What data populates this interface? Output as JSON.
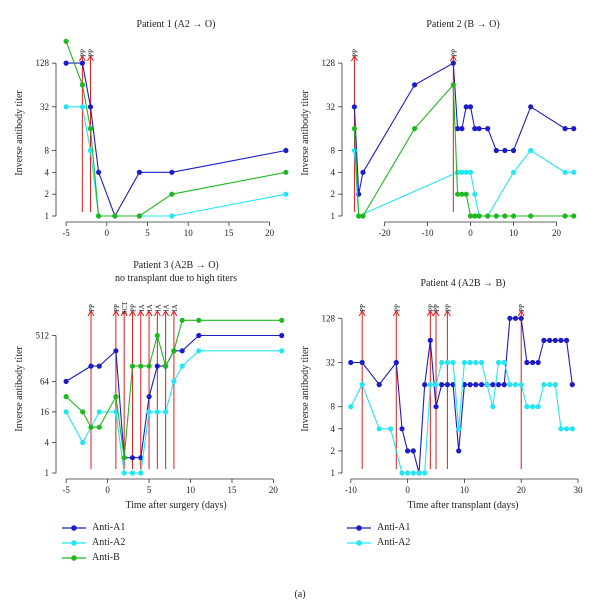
{
  "colors": {
    "Anti-A1": "#1c1cc8",
    "Anti-A2": "#22e6f2",
    "Anti-B": "#1fb81f",
    "annotation": "#e21b1b"
  },
  "caption": "(a)",
  "legends": [
    {
      "items": [
        {
          "name": "Anti-A1",
          "color": "#1c1cc8"
        },
        {
          "name": "Anti-A2",
          "color": "#22e6f2"
        },
        {
          "name": "Anti-B",
          "color": "#1fb81f"
        }
      ]
    },
    {
      "items": [
        {
          "name": "Anti-A1",
          "color": "#1c1cc8"
        },
        {
          "name": "Anti-A2",
          "color": "#22e6f2"
        }
      ]
    }
  ],
  "chart_data": [
    {
      "type": "line",
      "title": "Patient 1 (A2 → O)",
      "subtitle": "",
      "xlabel": "",
      "ylabel": "Inverse antibody titer",
      "xlim": [
        -5.5,
        22.5
      ],
      "ylim_log2": [
        0,
        7.6
      ],
      "log_scale_y": true,
      "xticks": [
        -5,
        0,
        5,
        10,
        15,
        20
      ],
      "yticks": [
        1,
        2,
        4,
        8,
        32,
        128
      ],
      "annotations": [
        {
          "x": -3,
          "label": "PP"
        },
        {
          "x": -2,
          "label": "PP"
        }
      ],
      "series": [
        {
          "name": "Anti-A1",
          "x": [
            -5,
            -3,
            -2,
            -1,
            1,
            4,
            8,
            22
          ],
          "y": [
            128,
            128,
            32,
            4,
            1,
            4,
            4,
            8
          ]
        },
        {
          "name": "Anti-A2",
          "x": [
            -5,
            -3,
            -2,
            -1,
            1,
            4,
            8,
            22
          ],
          "y": [
            32,
            32,
            8,
            1,
            1,
            1,
            1,
            2
          ]
        },
        {
          "name": "Anti-B",
          "x": [
            -5,
            -3,
            -2,
            -1,
            1,
            4,
            8,
            22
          ],
          "y": [
            256,
            64,
            16,
            1,
            1,
            1,
            2,
            4
          ]
        }
      ]
    },
    {
      "type": "line",
      "title": "Patient 2 (B → O)",
      "subtitle": "",
      "xlabel": "",
      "ylabel": "Inverse antibody titer",
      "xlim": [
        -28.5,
        25
      ],
      "ylim_log2": [
        0,
        7.6
      ],
      "log_scale_y": true,
      "xticks": [
        -20,
        -10,
        0,
        10,
        20
      ],
      "yticks": [
        1,
        2,
        4,
        8,
        32,
        128
      ],
      "annotations": [
        {
          "x": -27,
          "label": "PP"
        },
        {
          "x": -4,
          "label": "PP"
        }
      ],
      "series": [
        {
          "name": "Anti-A1",
          "x": [
            -27,
            -26,
            -25,
            -13,
            -4,
            -3,
            -2,
            -1,
            0,
            1,
            2,
            4,
            6,
            8,
            10,
            14,
            22,
            24
          ],
          "y": [
            32,
            2,
            4,
            64,
            128,
            16,
            16,
            32,
            32,
            16,
            16,
            16,
            8,
            8,
            8,
            32,
            16,
            16
          ]
        },
        {
          "name": "Anti-A2",
          "x": [
            -27,
            -26,
            -3,
            -2,
            -1,
            0,
            1,
            2,
            4,
            10,
            14,
            22,
            24
          ],
          "y": [
            8,
            1,
            4,
            4,
            4,
            4,
            2,
            1,
            1,
            4,
            8,
            4,
            4
          ]
        },
        {
          "name": "Anti-B",
          "x": [
            -27,
            -26,
            -25,
            -13,
            -4,
            -3,
            -2,
            -1,
            0,
            1,
            2,
            4,
            6,
            8,
            10,
            14,
            22,
            24
          ],
          "y": [
            16,
            1,
            1,
            16,
            64,
            2,
            2,
            2,
            1,
            1,
            1,
            1,
            1,
            1,
            1,
            1,
            1,
            1
          ]
        }
      ]
    },
    {
      "type": "line",
      "title": "Patient 3 (A2B → O)",
      "subtitle": "no transplant due to high titers",
      "xlabel": "Time after surgery (days)",
      "ylabel": "Inverse antibody titer",
      "xlim": [
        -5.5,
        22
      ],
      "ylim_log2": [
        0,
        11
      ],
      "log_scale_y": true,
      "xticks": [
        -5,
        0,
        5,
        10,
        15,
        20
      ],
      "yticks": [
        1,
        4,
        16,
        64,
        512
      ],
      "annotations": [
        {
          "x": -2,
          "label": "PP"
        },
        {
          "x": 1,
          "label": "PP"
        },
        {
          "x": 2,
          "label": "SCT"
        },
        {
          "x": 3,
          "label": "PP"
        },
        {
          "x": 4,
          "label": "IA"
        },
        {
          "x": 5,
          "label": "IA"
        },
        {
          "x": 6,
          "label": "IA"
        },
        {
          "x": 7,
          "label": "IA"
        },
        {
          "x": 8,
          "label": "IA"
        }
      ],
      "series": [
        {
          "name": "Anti-A1",
          "x": [
            -5,
            -2,
            -1,
            1,
            2,
            3,
            4,
            5,
            6,
            7,
            8,
            9,
            11,
            21
          ],
          "y": [
            64,
            128,
            128,
            256,
            2,
            2,
            2,
            32,
            128,
            128,
            256,
            256,
            512,
            512
          ]
        },
        {
          "name": "Anti-A2",
          "x": [
            -5,
            -3,
            -1,
            1,
            2,
            3,
            4,
            5,
            6,
            7,
            8,
            9,
            11,
            21
          ],
          "y": [
            16,
            4,
            16,
            16,
            1,
            1,
            1,
            16,
            16,
            16,
            64,
            128,
            256,
            256
          ]
        },
        {
          "name": "Anti-B",
          "x": [
            -5,
            -3,
            -2,
            -1,
            1,
            2,
            3,
            4,
            5,
            6,
            7,
            8,
            9,
            11,
            21
          ],
          "y": [
            32,
            16,
            8,
            8,
            32,
            2,
            128,
            128,
            128,
            512,
            128,
            256,
            1024,
            1024,
            1024
          ]
        }
      ]
    },
    {
      "type": "line",
      "title": "Patient 4 (A2B → B)",
      "subtitle": "",
      "xlabel": "Time after transplant (days)",
      "ylabel": "Inverse antibody titer",
      "xlim": [
        -10.5,
        30
      ],
      "ylim_log2": [
        0,
        7.6
      ],
      "log_scale_y": true,
      "xticks": [
        -10,
        0,
        10,
        20,
        30
      ],
      "yticks": [
        1,
        2,
        4,
        8,
        32,
        128
      ],
      "annotations": [
        {
          "x": -8,
          "label": "PP"
        },
        {
          "x": -2,
          "label": "PP"
        },
        {
          "x": 4,
          "label": "PP"
        },
        {
          "x": 5,
          "label": "PP"
        },
        {
          "x": 7,
          "label": "PP"
        },
        {
          "x": 20,
          "label": "PP"
        }
      ],
      "series": [
        {
          "name": "Anti-A1",
          "x": [
            -10,
            -8,
            -5,
            -2,
            -1,
            0,
            1,
            2,
            3,
            4,
            5,
            6,
            7,
            8,
            9,
            10,
            11,
            12,
            13,
            14,
            15,
            16,
            17,
            18,
            19,
            20,
            21,
            22,
            23,
            24,
            25,
            26,
            27,
            28,
            29
          ],
          "y": [
            32,
            32,
            16,
            32,
            4,
            2,
            2,
            1,
            16,
            64,
            8,
            16,
            16,
            16,
            2,
            16,
            16,
            16,
            16,
            16,
            16,
            16,
            16,
            128,
            128,
            128,
            32,
            32,
            32,
            64,
            64,
            64,
            64,
            64,
            16
          ]
        },
        {
          "name": "Anti-A2",
          "x": [
            -10,
            -8,
            -5,
            -3,
            -1,
            0,
            1,
            2,
            3,
            4,
            5,
            6,
            7,
            8,
            9,
            10,
            11,
            12,
            13,
            14,
            15,
            16,
            17,
            18,
            19,
            20,
            21,
            22,
            23,
            24,
            25,
            26,
            27,
            28,
            29
          ],
          "y": [
            8,
            16,
            4,
            4,
            1,
            1,
            1,
            1,
            1,
            16,
            16,
            32,
            32,
            32,
            4,
            32,
            32,
            32,
            32,
            16,
            8,
            32,
            32,
            16,
            16,
            16,
            8,
            8,
            8,
            16,
            16,
            16,
            4,
            4,
            4
          ]
        }
      ]
    }
  ]
}
